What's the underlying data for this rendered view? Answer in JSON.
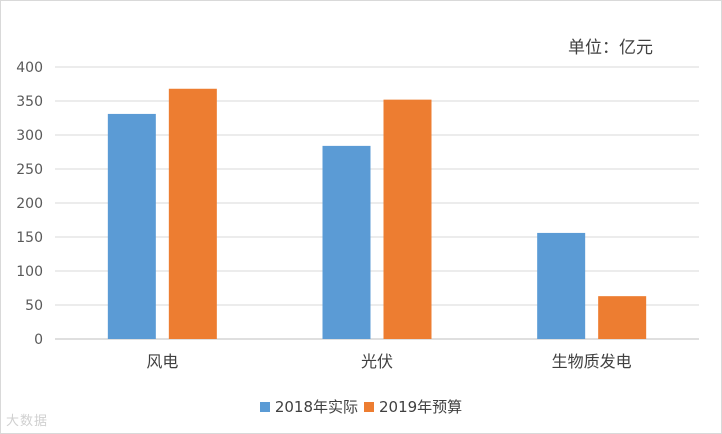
{
  "chart_data": {
    "type": "bar",
    "unit_label": "单位：亿元",
    "categories": [
      "风电",
      "光伏",
      "生物质发电"
    ],
    "series": [
      {
        "name": "2018年实际",
        "color": "#5b9bd5",
        "values": [
          331,
          284,
          156
        ]
      },
      {
        "name": "2019年预算",
        "color": "#ed7d31",
        "values": [
          368,
          352,
          63
        ]
      }
    ],
    "ylim": [
      0,
      400
    ],
    "yticks": [
      0,
      50,
      100,
      150,
      200,
      250,
      300,
      350,
      400
    ],
    "grid": true,
    "legend_position": "bottom",
    "watermark": "大数据"
  }
}
